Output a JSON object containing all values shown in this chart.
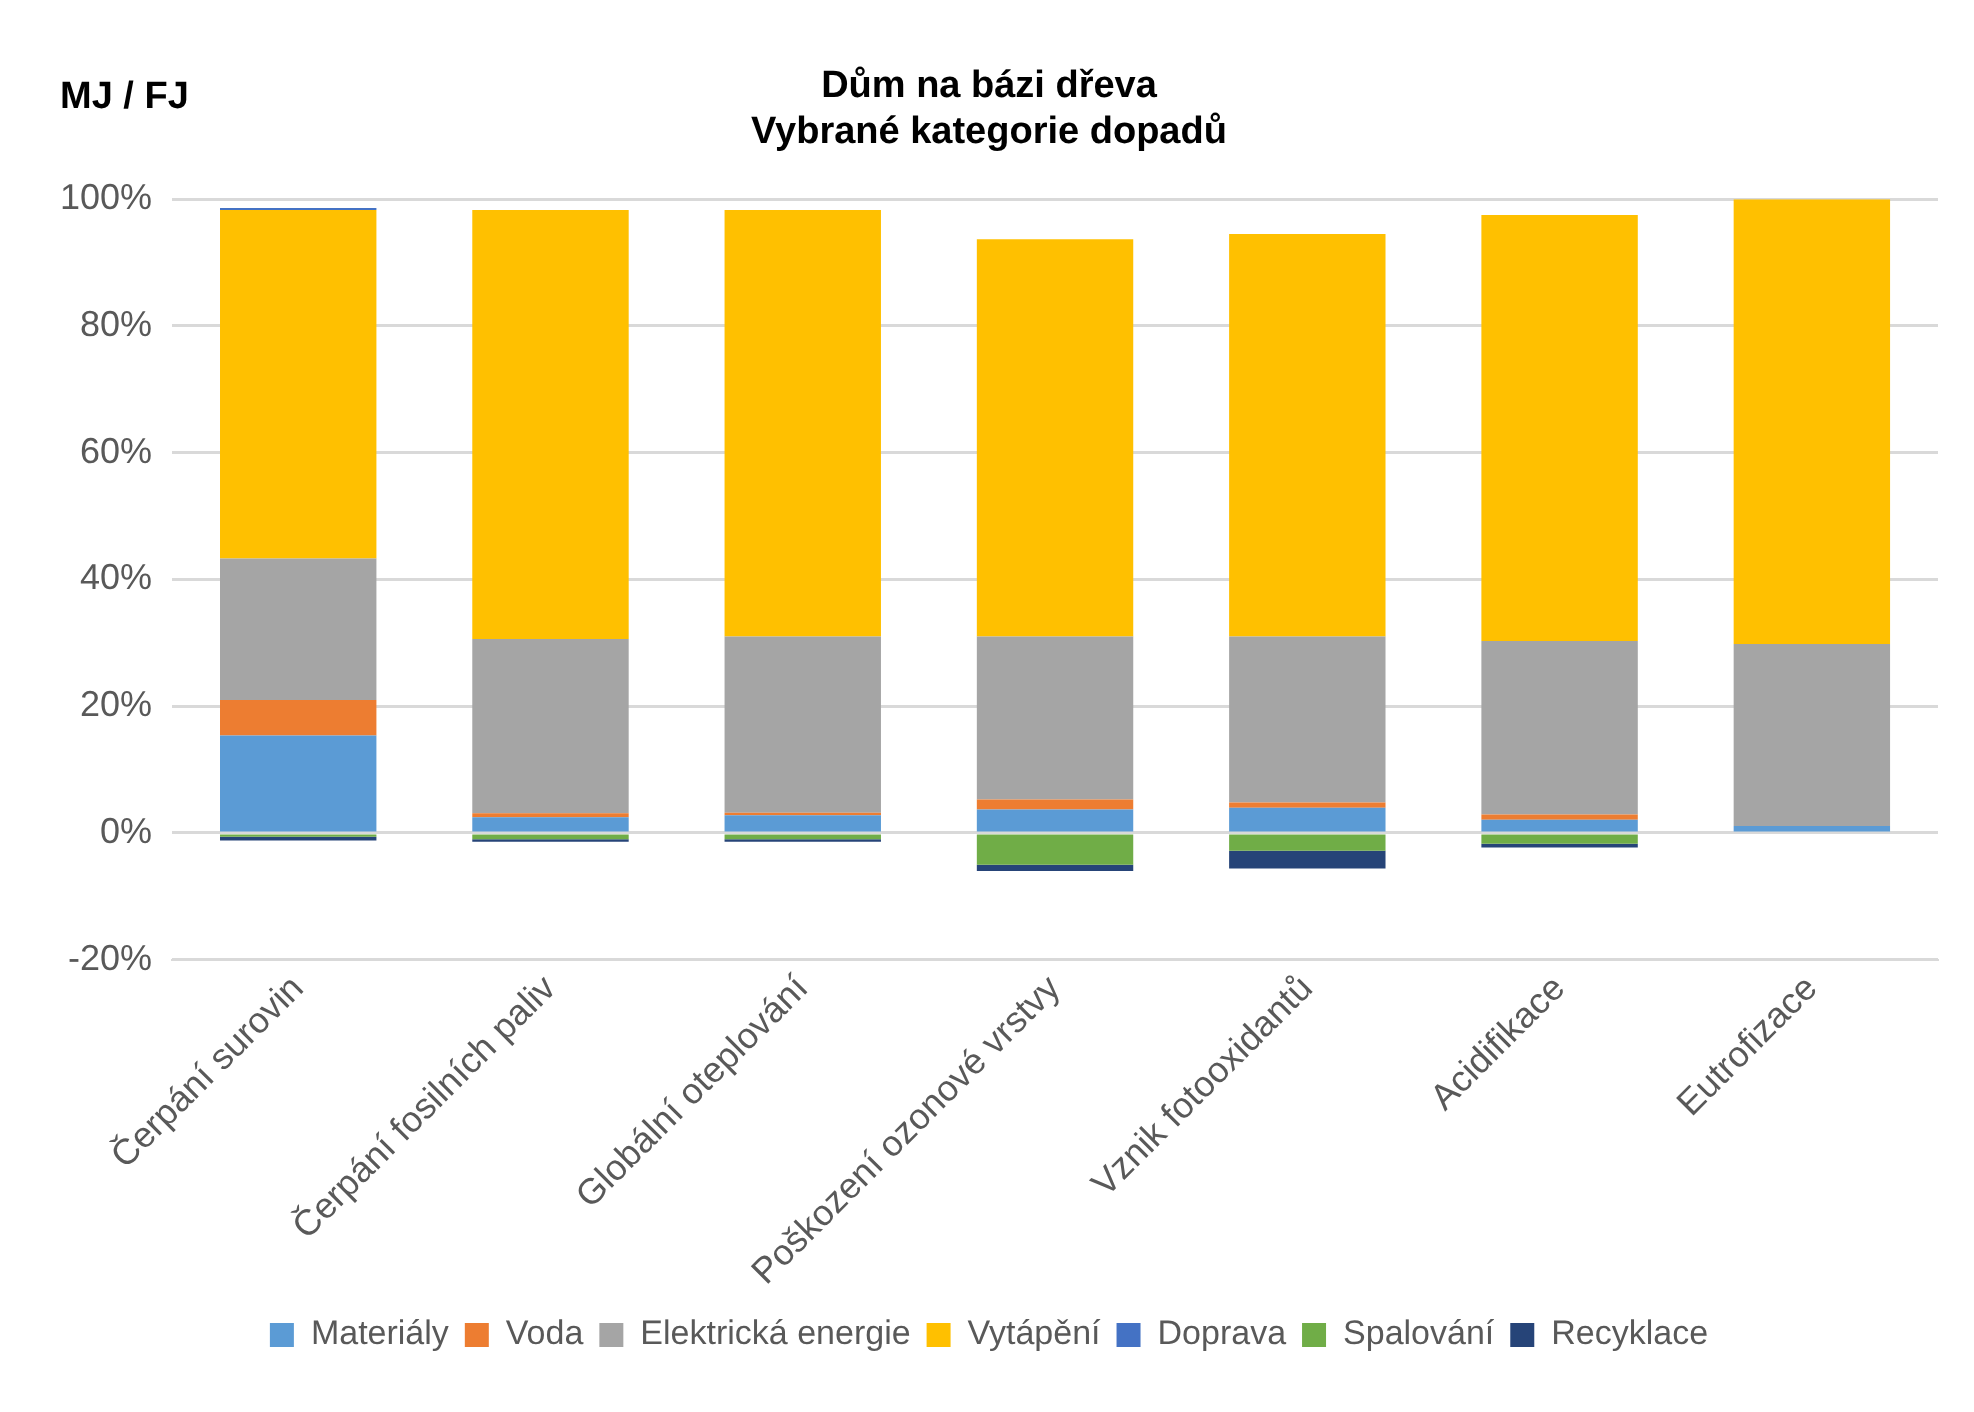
{
  "chart_data": {
    "type": "bar",
    "stacked": true,
    "title": "Dům na bázi dřeva\nVybrané kategorie dopadů",
    "ylabel": "MJ / FJ",
    "categories": [
      "Čerpání surovin",
      "Čerpání fosilních paliv",
      "Globální oteplování",
      "Poškození ozonové vrstvy",
      "Vznik fotooxidantů",
      "Acidifikace",
      "Eutrofizace"
    ],
    "series": [
      {
        "name": "Materiály",
        "color": "#5b9bd5",
        "values": [
          15.4,
          2.5,
          2.8,
          3.7,
          4.0,
          2.1,
          1.1
        ]
      },
      {
        "name": "Voda",
        "color": "#ed7d31",
        "values": [
          5.6,
          0.6,
          0.4,
          1.6,
          0.8,
          0.8,
          0
        ]
      },
      {
        "name": "Elektrická energie",
        "color": "#a5a5a5",
        "values": [
          22.3,
          27.5,
          27.8,
          25.7,
          26.2,
          27.4,
          28.7
        ]
      },
      {
        "name": "Vytápění",
        "color": "#ffc000",
        "values": [
          55,
          67.7,
          67.3,
          62.7,
          63.5,
          67.2,
          70.2
        ]
      },
      {
        "name": "Doprava",
        "color": "#4472c4",
        "values": [
          0.3,
          0,
          0,
          0,
          0,
          0,
          0
        ]
      },
      {
        "name": "Spalování",
        "color": "#70ad47",
        "values": [
          -0.6,
          -1.0,
          -1.0,
          -5.0,
          -2.8,
          -1.7,
          0
        ]
      },
      {
        "name": "Recyklace",
        "color": "#264478",
        "values": [
          -0.6,
          -0.4,
          -0.4,
          -1.0,
          -2.8,
          -0.6,
          0
        ]
      }
    ],
    "ylim": [
      -20,
      100
    ],
    "yticks": [
      {
        "value": -20,
        "label": "-20%"
      },
      {
        "value": 0,
        "label": "0%"
      },
      {
        "value": 20,
        "label": "20%"
      },
      {
        "value": 40,
        "label": "40%"
      },
      {
        "value": 60,
        "label": "60%"
      },
      {
        "value": 80,
        "label": "80%"
      },
      {
        "value": 100,
        "label": "100%"
      }
    ],
    "grid": "y",
    "legend": "bottom"
  }
}
